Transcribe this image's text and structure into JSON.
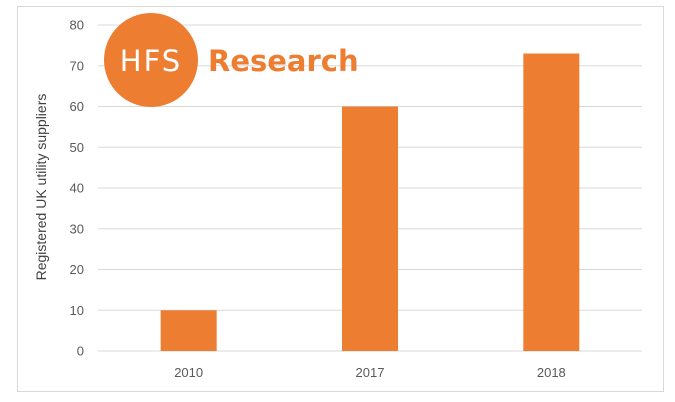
{
  "logo": {
    "circle_text": "HFS",
    "word": "Research",
    "color": "#ed7d31"
  },
  "chart_data": {
    "type": "bar",
    "categories": [
      "2010",
      "2017",
      "2018"
    ],
    "values": [
      10,
      60,
      73
    ],
    "title": "",
    "xlabel": "",
    "ylabel": "Registered UK utility suppliers",
    "ylim": [
      0,
      80
    ],
    "yticks": [
      0,
      10,
      20,
      30,
      40,
      50,
      60,
      70,
      80
    ],
    "grid": true,
    "bar_color": "#ed7d31",
    "grid_color": "#d9d9d9"
  }
}
